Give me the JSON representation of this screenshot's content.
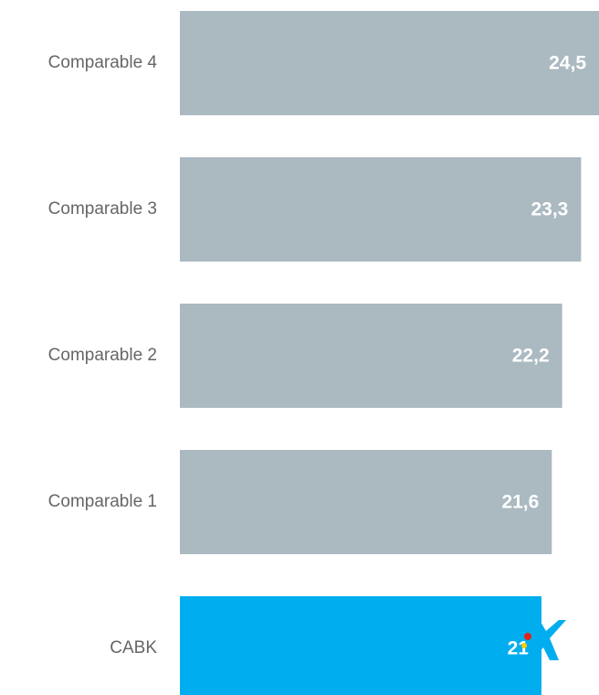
{
  "chart_data": {
    "type": "bar",
    "orientation": "horizontal",
    "categories": [
      "Comparable 4",
      "Comparable 3",
      "Comparable 2",
      "Comparable 1",
      "CABK"
    ],
    "values": [
      24.5,
      23.3,
      22.2,
      21.6,
      21
    ],
    "value_labels": [
      "24,5",
      "23,3",
      "22,2",
      "21,6",
      "21"
    ],
    "title": "",
    "xlabel": "",
    "ylabel": "",
    "xlim": [
      0,
      24.5
    ],
    "grid": false,
    "legend": "none",
    "colors": {
      "default_bar": "#abb9c1",
      "highlight_bar": "#00aeef",
      "highlight_category": "CABK",
      "logo_star": "#00aeef",
      "logo_dot_red": "#e2231a",
      "logo_dot_yellow": "#ffcc00"
    },
    "highlight_logo_icon": "caixabank-star-icon"
  }
}
